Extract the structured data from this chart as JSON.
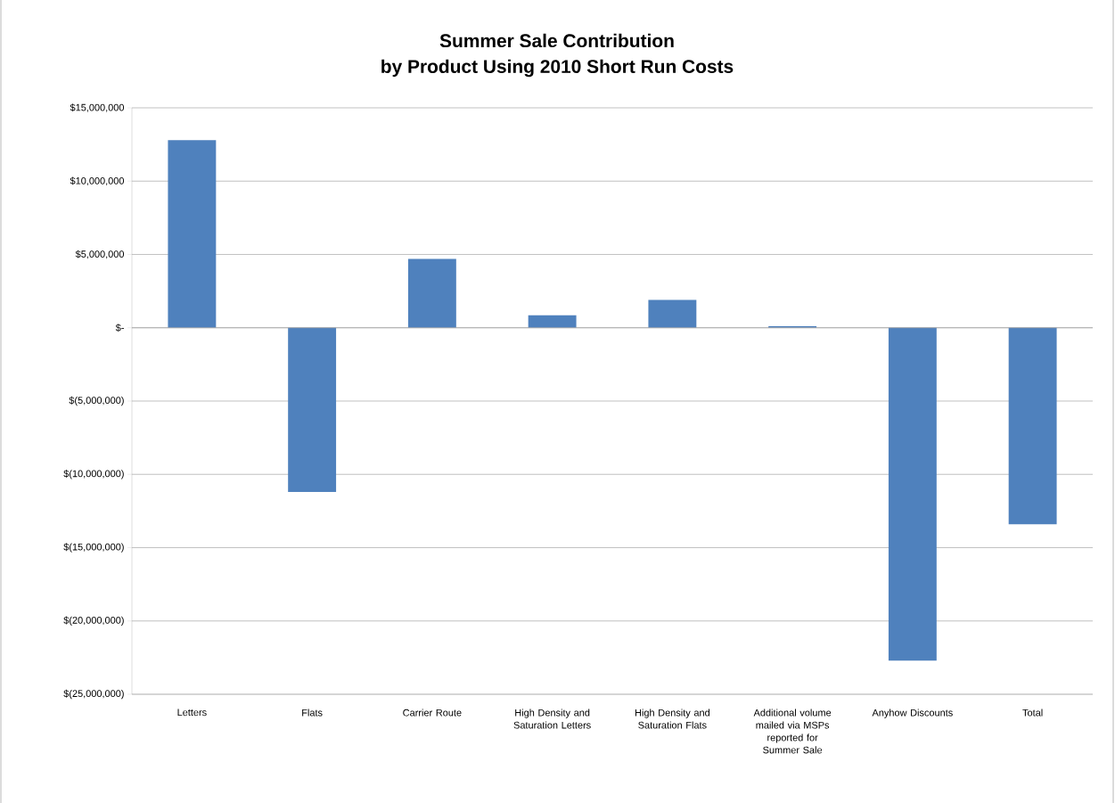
{
  "chart_data": {
    "type": "bar",
    "title": "Summer Sale Contribution\nby Product Using 2010 Short Run Costs",
    "categories": [
      "Letters",
      "Flats",
      "Carrier Route",
      "High Density and Saturation Letters",
      "High Density and Saturation Flats",
      "Additional volume mailed via MSPs reported for Summer Sale",
      "Anyhow Discounts",
      "Total"
    ],
    "values": [
      12800000,
      -11200000,
      4700000,
      850000,
      1900000,
      100000,
      -22700000,
      -13400000
    ],
    "color": "#4f81bd",
    "ylim": [
      -25000000,
      15000000
    ],
    "yticks": [
      {
        "value": -25000000,
        "label": "$(25,000,000)"
      },
      {
        "value": -20000000,
        "label": "$(20,000,000)"
      },
      {
        "value": -15000000,
        "label": "$(15,000,000)"
      },
      {
        "value": -10000000,
        "label": "$(10,000,000)"
      },
      {
        "value": -5000000,
        "label": "$(5,000,000)"
      },
      {
        "value": 0,
        "label": "$-"
      },
      {
        "value": 5000000,
        "label": "$5,000,000"
      },
      {
        "value": 10000000,
        "label": "$10,000,000"
      },
      {
        "value": 15000000,
        "label": "$15,000,000"
      }
    ],
    "grid": "y"
  }
}
